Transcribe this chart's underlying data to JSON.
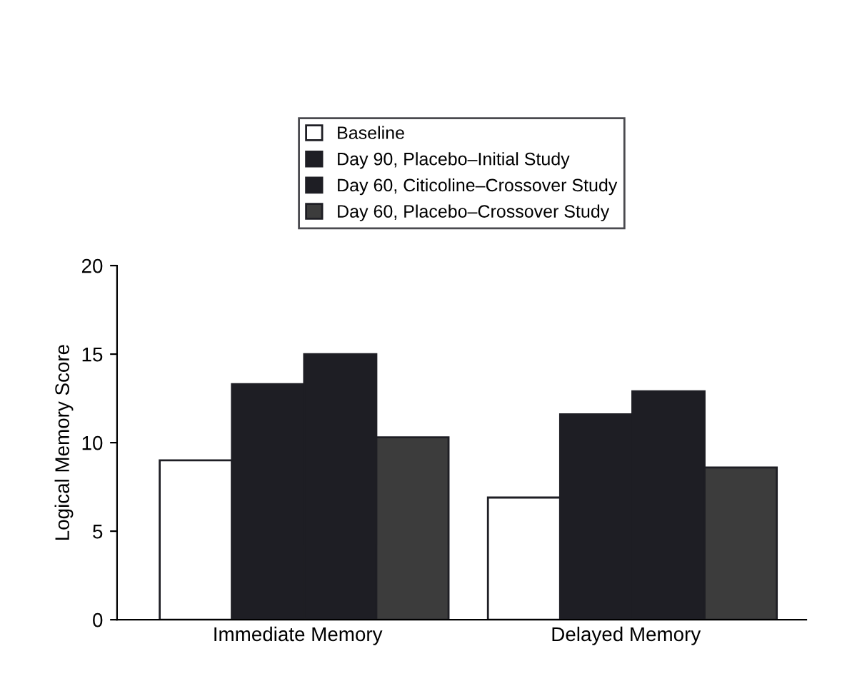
{
  "chart_data": {
    "type": "bar",
    "ylabel": "Logical Memory Score",
    "categories": [
      "Immediate Memory",
      "Delayed Memory"
    ],
    "series": [
      {
        "name": "Baseline",
        "color": "#ffffff",
        "values": [
          9.0,
          6.9
        ]
      },
      {
        "name": "Day 90, Placebo–Initial Study",
        "color": "#1e1e24",
        "values": [
          13.3,
          11.6
        ]
      },
      {
        "name": "Day 60, Citicoline–Crossover Study",
        "color": "#1e1e24",
        "values": [
          15.0,
          12.9
        ]
      },
      {
        "name": "Day 60, Placebo–Crossover Study",
        "color": "#3c3c3c",
        "values": [
          10.3,
          8.6
        ]
      }
    ],
    "ylim": [
      0,
      20
    ],
    "yticks": [
      0,
      5,
      10,
      15,
      20
    ],
    "grid": false,
    "legend": "top"
  }
}
